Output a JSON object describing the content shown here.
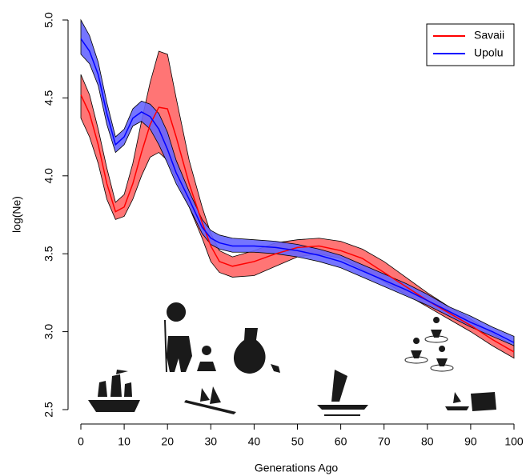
{
  "chart_data": {
    "type": "band-line",
    "x_label": "Generations Ago",
    "y_label": "log(Ne)",
    "xlim": [
      0,
      100
    ],
    "ylim": [
      2.5,
      5.0
    ],
    "xticks": [
      0,
      10,
      20,
      30,
      40,
      50,
      60,
      70,
      80,
      90,
      100
    ],
    "yticks": [
      2.5,
      {
        "value": 3,
        "label": "3.0"
      },
      3.5,
      {
        "value": 4,
        "label": "4.0"
      },
      4.5,
      {
        "value": 5,
        "label": "5.0"
      }
    ],
    "legend": "top-right",
    "x": [
      0,
      2,
      4,
      6,
      8,
      10,
      12,
      14,
      16,
      18,
      20,
      22,
      25,
      28,
      30,
      32,
      35,
      40,
      45,
      50,
      55,
      60,
      65,
      70,
      75,
      80,
      85,
      90,
      95,
      100
    ],
    "series": [
      {
        "name": "Savaii",
        "color": "#ff0000",
        "fill": "#ff6666",
        "values": [
          4.52,
          4.4,
          4.2,
          3.95,
          3.77,
          3.8,
          3.95,
          4.15,
          4.33,
          4.44,
          4.43,
          4.25,
          3.95,
          3.7,
          3.55,
          3.45,
          3.42,
          3.45,
          3.5,
          3.54,
          3.55,
          3.52,
          3.47,
          3.38,
          3.29,
          3.2,
          3.12,
          3.04,
          2.95,
          2.87
        ],
        "lower": [
          4.37,
          4.25,
          4.08,
          3.85,
          3.72,
          3.74,
          3.85,
          4.0,
          4.12,
          4.15,
          4.1,
          3.98,
          3.8,
          3.6,
          3.45,
          3.38,
          3.35,
          3.36,
          3.42,
          3.48,
          3.5,
          3.47,
          3.4,
          3.32,
          3.24,
          3.16,
          3.08,
          3.0,
          2.91,
          2.83
        ],
        "upper": [
          4.65,
          4.52,
          4.3,
          4.05,
          3.83,
          3.88,
          4.08,
          4.35,
          4.6,
          4.8,
          4.78,
          4.5,
          4.1,
          3.8,
          3.63,
          3.52,
          3.48,
          3.52,
          3.57,
          3.59,
          3.6,
          3.58,
          3.53,
          3.45,
          3.35,
          3.25,
          3.16,
          3.08,
          2.99,
          2.91
        ]
      },
      {
        "name": "Upolu",
        "color": "#0000ff",
        "fill": "#6666ff",
        "values": [
          4.88,
          4.8,
          4.65,
          4.4,
          4.2,
          4.25,
          4.37,
          4.41,
          4.38,
          4.3,
          4.17,
          4.02,
          3.85,
          3.67,
          3.6,
          3.57,
          3.55,
          3.55,
          3.54,
          3.52,
          3.49,
          3.45,
          3.39,
          3.33,
          3.27,
          3.2,
          3.13,
          3.06,
          3.0,
          2.93
        ],
        "lower": [
          4.78,
          4.72,
          4.58,
          4.33,
          4.15,
          4.2,
          4.32,
          4.35,
          4.3,
          4.2,
          4.08,
          3.95,
          3.8,
          3.63,
          3.56,
          3.53,
          3.51,
          3.51,
          3.5,
          3.48,
          3.45,
          3.41,
          3.35,
          3.29,
          3.23,
          3.17,
          3.1,
          3.03,
          2.97,
          2.91
        ],
        "upper": [
          5.0,
          4.9,
          4.73,
          4.47,
          4.25,
          4.3,
          4.43,
          4.48,
          4.46,
          4.4,
          4.28,
          4.1,
          3.9,
          3.72,
          3.65,
          3.62,
          3.6,
          3.59,
          3.58,
          3.56,
          3.53,
          3.49,
          3.43,
          3.37,
          3.31,
          3.24,
          3.16,
          3.1,
          3.03,
          2.97
        ]
      }
    ]
  }
}
